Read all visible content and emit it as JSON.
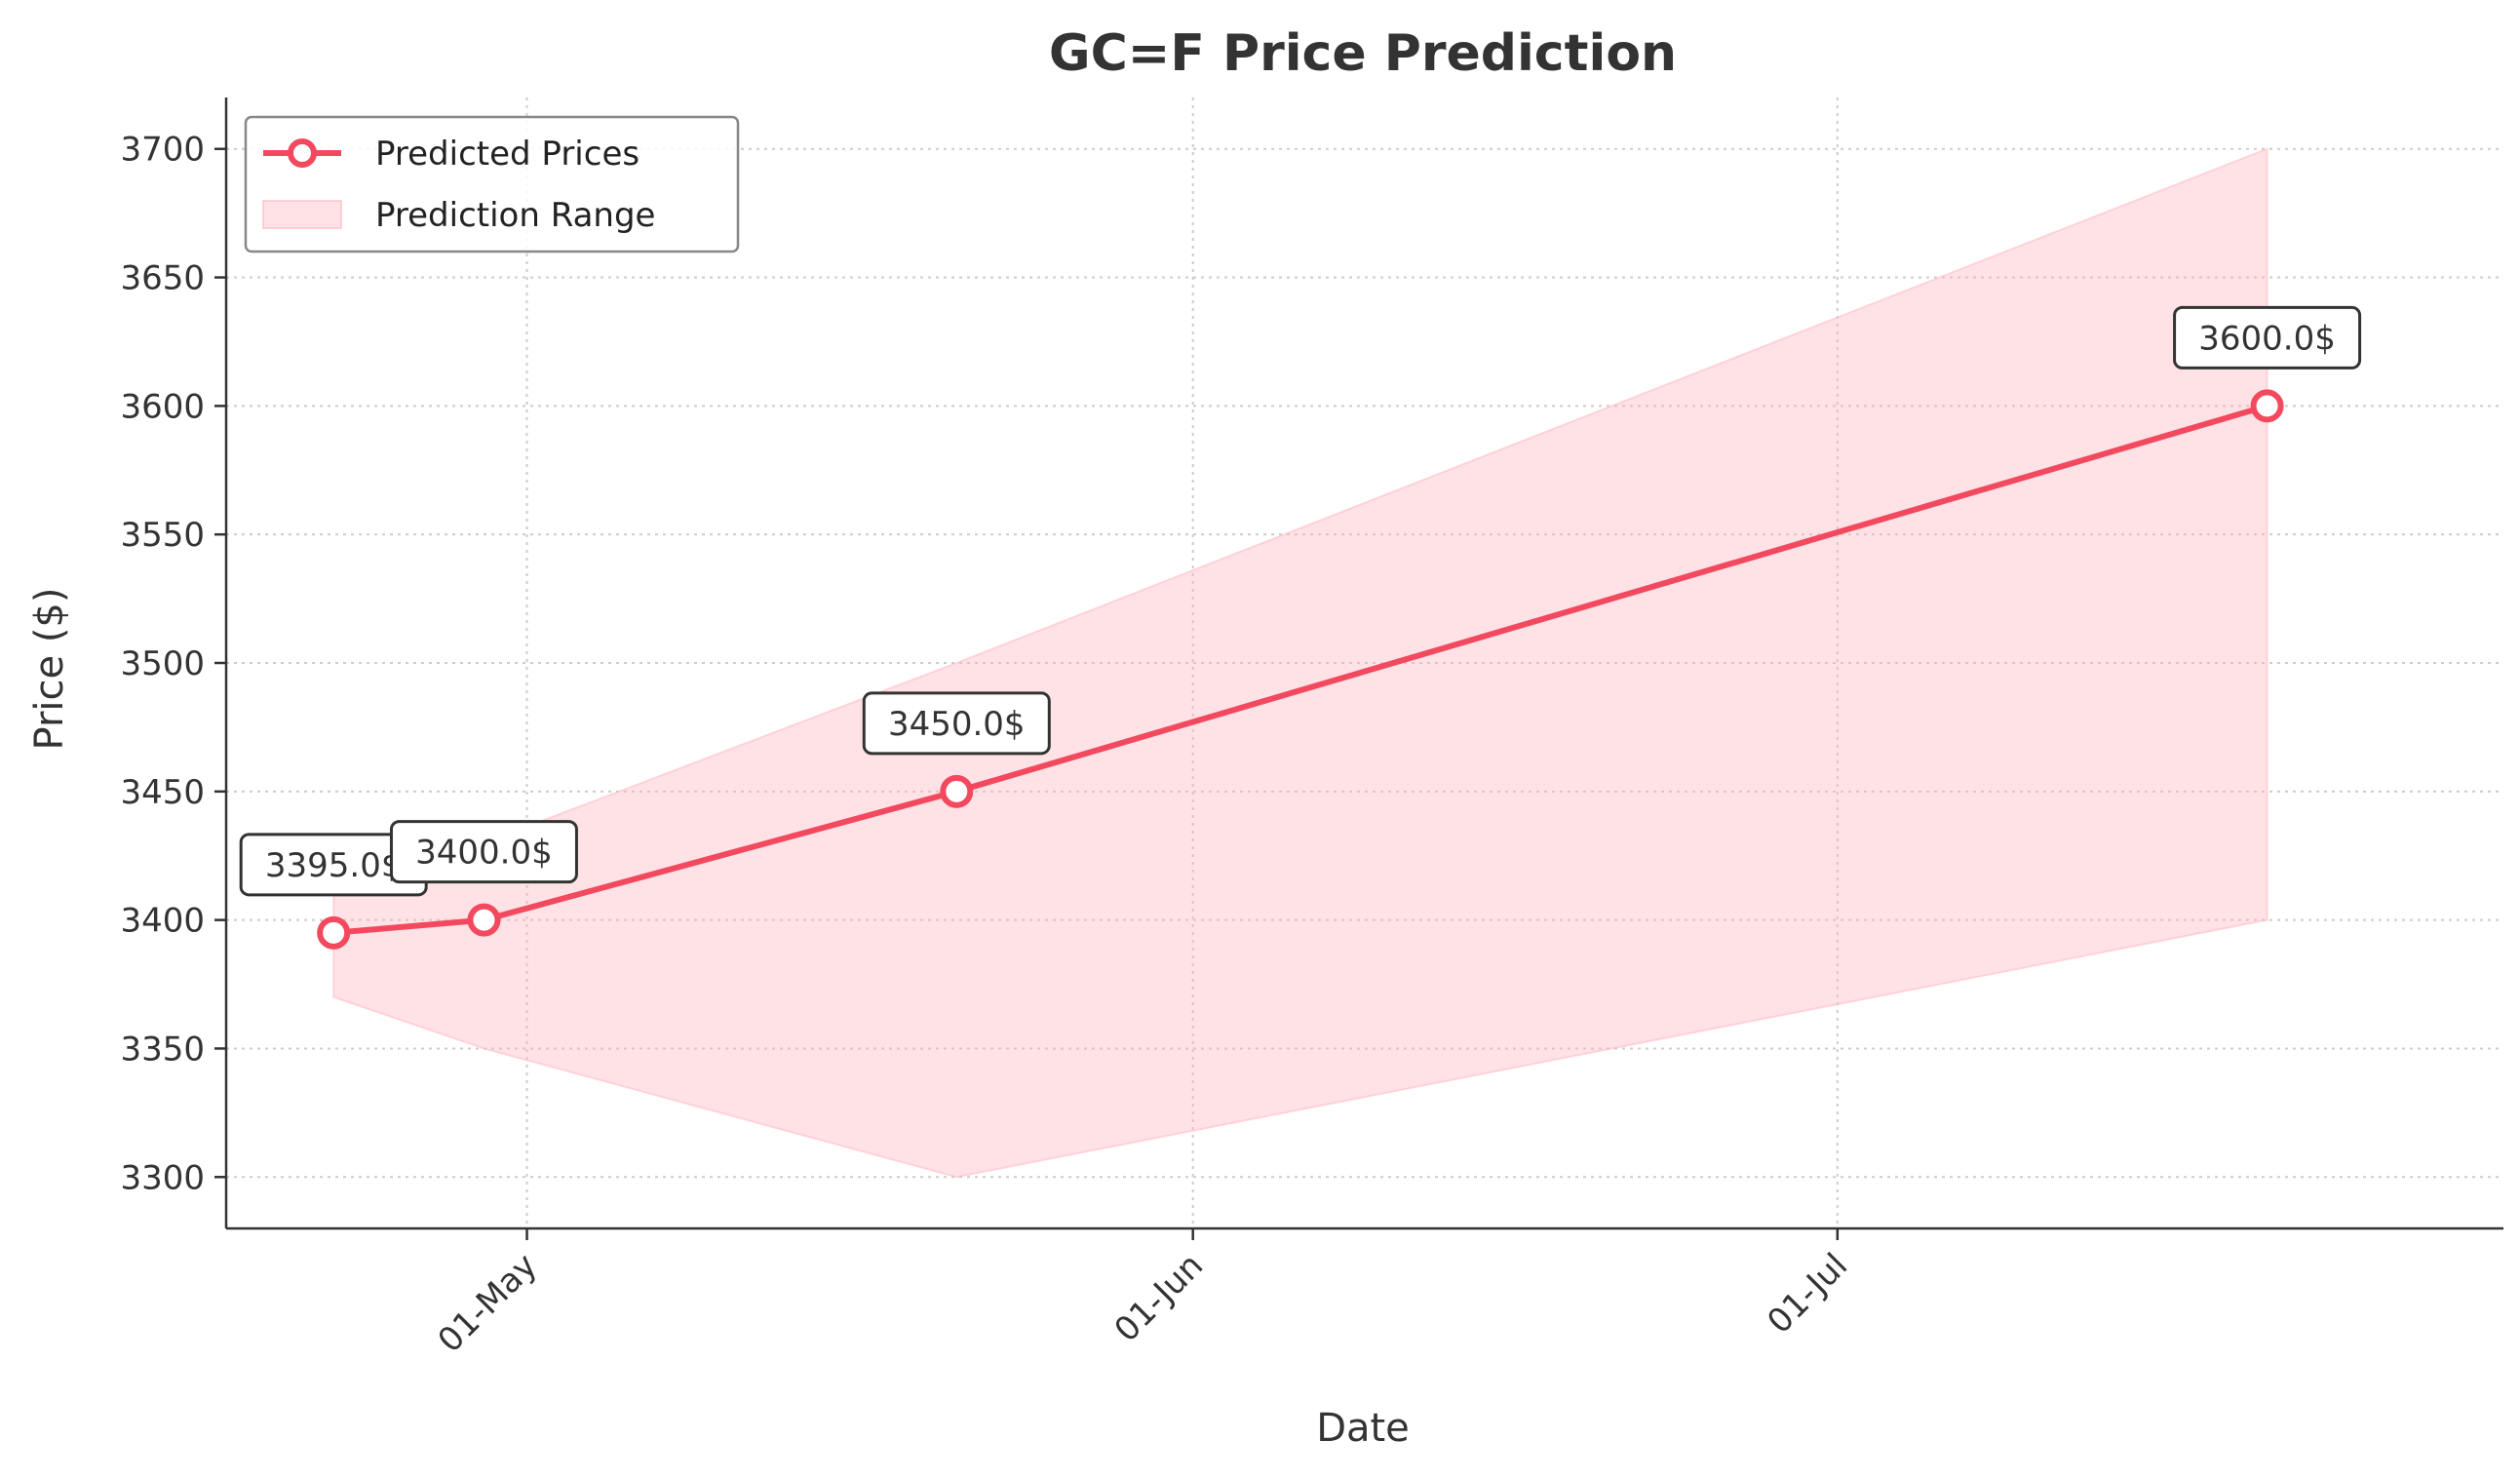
{
  "chart_data": {
    "type": "line",
    "title": "GC=F Price Prediction",
    "xlabel": "Date",
    "ylabel": "Price ($)",
    "x_dates": [
      "2025-04-22",
      "2025-04-29",
      "2025-05-21",
      "2025-07-21"
    ],
    "series": [
      {
        "name": "Predicted Prices",
        "values": [
          3395,
          3400,
          3450,
          3600
        ],
        "data_labels": [
          "3395.0$",
          "3400.0$",
          "3450.0$",
          "3600.0$"
        ]
      }
    ],
    "range": {
      "name": "Prediction Range",
      "lower": [
        3370,
        3350,
        3300,
        3400
      ],
      "upper": [
        3420,
        3430,
        3500,
        3700
      ]
    },
    "x_range": [
      "2025-04-17",
      "2025-08-01"
    ],
    "ylim": [
      3280,
      3720
    ],
    "y_ticks": [
      3300,
      3350,
      3400,
      3450,
      3500,
      3550,
      3600,
      3650,
      3700
    ],
    "x_ticks": [
      {
        "date": "2025-05-01",
        "label": "01-May"
      },
      {
        "date": "2025-06-01",
        "label": "01-Jun"
      },
      {
        "date": "2025-07-01",
        "label": "01-Jul"
      }
    ],
    "grid": true,
    "legend_position": "top-left",
    "colors": {
      "line": "#f2495e",
      "band": "#ffb6c1",
      "text": "#333333",
      "grid": "#cccccc"
    }
  }
}
